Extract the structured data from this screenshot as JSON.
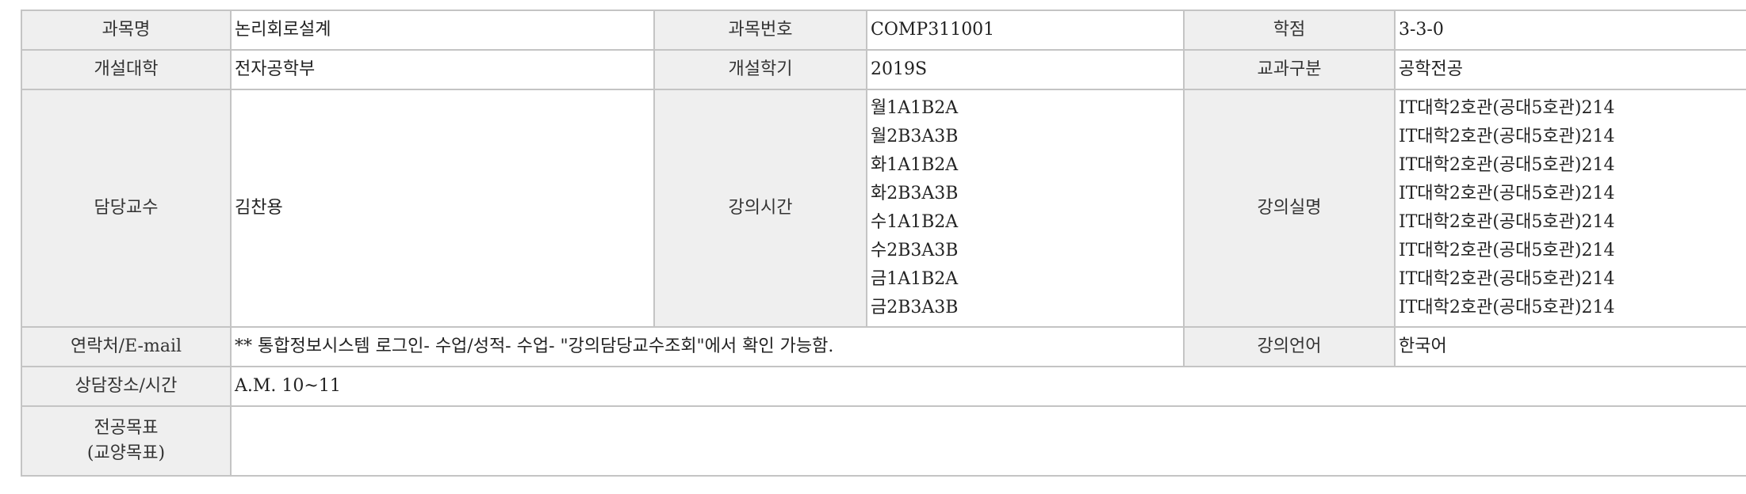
{
  "course": {
    "name_label": "과목명",
    "name": "논리회로설계",
    "code_label": "과목번호",
    "code": "COMP311001",
    "credit_label": "학점",
    "credit": "3-3-0",
    "college_label": "개설대학",
    "college": "전자공학부",
    "semester_label": "개설학기",
    "semester": "2019S",
    "category_label": "교과구분",
    "category": "공학전공",
    "professor_label": "담당교수",
    "professor": "김찬용",
    "time_label": "강의시간",
    "times": [
      "월1A1B2A",
      "월2B3A3B",
      "화1A1B2A",
      "화2B3A3B",
      "수1A1B2A",
      "수2B3A3B",
      "금1A1B2A",
      "금2B3A3B"
    ],
    "room_label": "강의실명",
    "rooms": [
      "IT대학2호관(공대5호관)214",
      "IT대학2호관(공대5호관)214",
      "IT대학2호관(공대5호관)214",
      "IT대학2호관(공대5호관)214",
      "IT대학2호관(공대5호관)214",
      "IT대학2호관(공대5호관)214",
      "IT대학2호관(공대5호관)214",
      "IT대학2호관(공대5호관)214"
    ],
    "contact_label": "연락처/E-mail",
    "contact": "** 통합정보시스템 로그인- 수업/성적- 수업- \"강의담당교수조회\"에서 확인 가능함.",
    "language_label": "강의언어",
    "language": "한국어",
    "office_label": "상담장소/시간",
    "office": "A.M. 10~11",
    "objective_label_line1": "전공목표",
    "objective_label_line2": "(교양목표)",
    "objective": ""
  }
}
